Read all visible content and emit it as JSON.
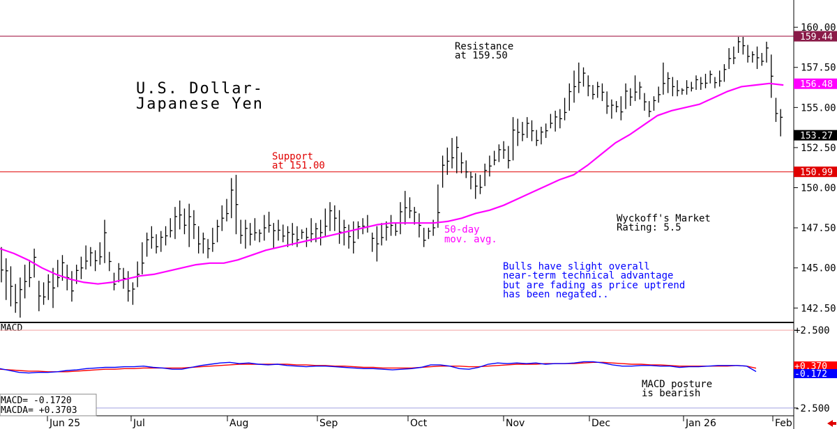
{
  "chart_data": [
    {
      "type": "ohlc",
      "title_line1": "U.S. Dollar-",
      "title_line2": "Japanese Yen",
      "y_ticks": [
        "160.00",
        "157.50",
        "155.00",
        "152.50",
        "150.00",
        "147.50",
        "145.00",
        "142.50"
      ],
      "ylim": [
        141.6,
        161.7
      ],
      "x_labels": [
        "Jun 25",
        "Jul",
        "Aug",
        "Sep",
        "Oct",
        "Nov",
        "Dec",
        "Jan 26",
        "Feb"
      ],
      "resistance": {
        "value": 159.44,
        "tag": "159.44",
        "line1": "Resistance",
        "line2": "at 159.50"
      },
      "support": {
        "value": 150.99,
        "tag": "150.99",
        "line1": "Support",
        "line2": "at 151.00"
      },
      "ma": {
        "label_line1": "50-day",
        "label_line2": "mov. avg.",
        "tag": "156.48",
        "color": "#ff00ff",
        "values": [
          146.2,
          145.9,
          145.5,
          145.0,
          144.6,
          144.3,
          144.1,
          144.0,
          144.1,
          144.3,
          144.5,
          144.6,
          144.8,
          145.0,
          145.2,
          145.3,
          145.3,
          145.5,
          145.8,
          146.1,
          146.3,
          146.5,
          146.7,
          146.9,
          147.1,
          147.3,
          147.5,
          147.7,
          147.8,
          147.8,
          147.8,
          147.8,
          147.9,
          148.1,
          148.4,
          148.6,
          148.9,
          149.3,
          149.7,
          150.1,
          150.5,
          150.8,
          151.4,
          152.1,
          152.8,
          153.3,
          153.9,
          154.5,
          154.8,
          155.0,
          155.2,
          155.6,
          156.0,
          156.3,
          156.4,
          156.5,
          156.4
        ]
      },
      "price_tag": "153.27",
      "rating_line1": "Wyckoff's Market",
      "rating_line2": "Rating: 5.5",
      "comment_lines": [
        "Bulls have slight overall",
        "near-term technical advantage",
        "but are fading as price uptrend",
        "has been negated.."
      ],
      "bars": [
        [
          146.3,
          144.1
        ],
        [
          145.6,
          143.0
        ],
        [
          145.1,
          142.6
        ],
        [
          144.0,
          142.2
        ],
        [
          144.4,
          141.9
        ],
        [
          145.2,
          143.1
        ],
        [
          145.5,
          143.8
        ],
        [
          146.2,
          144.4
        ],
        [
          144.2,
          142.3
        ],
        [
          144.1,
          142.7
        ],
        [
          144.6,
          143.0
        ],
        [
          145.0,
          142.5
        ],
        [
          145.5,
          143.8
        ],
        [
          145.8,
          144.2
        ],
        [
          145.2,
          143.6
        ],
        [
          144.8,
          142.9
        ],
        [
          145.2,
          144.0
        ],
        [
          145.7,
          144.3
        ],
        [
          146.4,
          144.9
        ],
        [
          146.3,
          145.1
        ],
        [
          146.1,
          144.8
        ],
        [
          146.6,
          145.2
        ],
        [
          148.0,
          145.3
        ],
        [
          146.0,
          144.8
        ],
        [
          144.7,
          143.6
        ],
        [
          145.3,
          144.1
        ],
        [
          145.0,
          143.7
        ],
        [
          144.8,
          142.9
        ],
        [
          144.1,
          142.7
        ],
        [
          145.4,
          143.8
        ],
        [
          146.6,
          144.6
        ],
        [
          147.2,
          145.7
        ],
        [
          147.6,
          146.2
        ],
        [
          147.1,
          145.9
        ],
        [
          147.3,
          146.0
        ],
        [
          147.6,
          146.4
        ],
        [
          148.1,
          146.9
        ],
        [
          148.8,
          146.8
        ],
        [
          149.2,
          147.4
        ],
        [
          148.7,
          147.1
        ],
        [
          149.0,
          146.3
        ],
        [
          148.6,
          146.8
        ],
        [
          147.6,
          145.9
        ],
        [
          147.2,
          145.9
        ],
        [
          146.8,
          145.6
        ],
        [
          147.5,
          146.0
        ],
        [
          148.0,
          146.6
        ],
        [
          148.9,
          147.3
        ],
        [
          149.3,
          147.9
        ],
        [
          150.6,
          148.1
        ],
        [
          150.8,
          147.1
        ],
        [
          148.0,
          146.5
        ],
        [
          148.0,
          146.2
        ],
        [
          147.8,
          146.4
        ],
        [
          148.1,
          146.7
        ],
        [
          147.4,
          146.6
        ],
        [
          148.3,
          146.7
        ],
        [
          148.5,
          147.2
        ],
        [
          147.8,
          146.2
        ],
        [
          148.0,
          146.7
        ],
        [
          147.7,
          146.6
        ],
        [
          147.6,
          146.3
        ],
        [
          147.8,
          146.4
        ],
        [
          147.6,
          146.3
        ],
        [
          147.4,
          146.8
        ],
        [
          147.5,
          146.3
        ],
        [
          148.1,
          146.6
        ],
        [
          147.8,
          146.6
        ],
        [
          148.0,
          146.4
        ],
        [
          148.7,
          147.0
        ],
        [
          149.1,
          147.3
        ],
        [
          148.9,
          147.3
        ],
        [
          148.6,
          146.5
        ],
        [
          148.0,
          146.4
        ],
        [
          147.7,
          146.2
        ],
        [
          147.9,
          145.9
        ],
        [
          147.9,
          146.8
        ],
        [
          148.1,
          147.1
        ],
        [
          148.3,
          147.2
        ],
        [
          147.2,
          146.0
        ],
        [
          147.6,
          145.4
        ],
        [
          147.8,
          146.4
        ],
        [
          147.9,
          146.7
        ],
        [
          148.3,
          147.0
        ],
        [
          147.8,
          147.0
        ],
        [
          149.1,
          147.1
        ],
        [
          149.8,
          147.7
        ],
        [
          149.4,
          148.1
        ],
        [
          148.8,
          147.7
        ],
        [
          148.4,
          146.9
        ],
        [
          147.5,
          146.3
        ],
        [
          147.5,
          146.8
        ],
        [
          148.0,
          147.0
        ],
        [
          150.2,
          147.5
        ],
        [
          152.0,
          150.0
        ],
        [
          152.5,
          150.8
        ],
        [
          153.1,
          151.2
        ],
        [
          153.2,
          150.9
        ],
        [
          152.2,
          150.9
        ],
        [
          151.7,
          150.6
        ],
        [
          151.0,
          149.9
        ],
        [
          150.9,
          149.3
        ],
        [
          150.8,
          149.6
        ],
        [
          151.5,
          150.1
        ],
        [
          152.0,
          150.7
        ],
        [
          152.3,
          151.4
        ],
        [
          152.7,
          151.6
        ],
        [
          152.9,
          151.8
        ],
        [
          152.6,
          151.2
        ],
        [
          154.4,
          151.7
        ],
        [
          154.3,
          152.6
        ],
        [
          154.1,
          152.9
        ],
        [
          154.4,
          153.1
        ],
        [
          154.2,
          152.9
        ],
        [
          153.6,
          152.6
        ],
        [
          153.8,
          152.7
        ],
        [
          154.0,
          153.1
        ],
        [
          154.6,
          153.7
        ],
        [
          154.8,
          153.5
        ],
        [
          154.9,
          153.7
        ],
        [
          155.6,
          154.2
        ],
        [
          156.5,
          154.8
        ],
        [
          157.3,
          155.3
        ],
        [
          157.8,
          155.9
        ],
        [
          157.5,
          156.3
        ],
        [
          157.0,
          155.7
        ],
        [
          156.4,
          155.5
        ],
        [
          156.6,
          155.6
        ],
        [
          156.5,
          155.4
        ],
        [
          156.0,
          154.6
        ],
        [
          155.5,
          154.3
        ],
        [
          155.4,
          154.7
        ],
        [
          155.7,
          154.2
        ],
        [
          156.5,
          154.9
        ],
        [
          156.2,
          155.1
        ],
        [
          157.0,
          155.4
        ],
        [
          156.6,
          155.5
        ],
        [
          155.9,
          154.8
        ],
        [
          155.4,
          154.4
        ],
        [
          155.7,
          154.8
        ],
        [
          156.3,
          155.3
        ],
        [
          157.8,
          155.8
        ],
        [
          157.2,
          155.9
        ],
        [
          156.9,
          155.7
        ],
        [
          156.7,
          155.7
        ],
        [
          156.2,
          155.8
        ],
        [
          156.7,
          155.8
        ],
        [
          156.6,
          156.0
        ],
        [
          157.0,
          156.1
        ],
        [
          156.9,
          156.1
        ],
        [
          157.1,
          156.2
        ],
        [
          157.3,
          156.5
        ],
        [
          156.9,
          156.2
        ],
        [
          157.3,
          156.3
        ],
        [
          157.7,
          156.6
        ],
        [
          158.7,
          157.4
        ],
        [
          158.8,
          157.7
        ],
        [
          159.4,
          158.4
        ],
        [
          159.4,
          158.3
        ],
        [
          158.9,
          157.8
        ],
        [
          158.5,
          157.8
        ],
        [
          158.8,
          157.4
        ],
        [
          158.4,
          157.6
        ],
        [
          159.1,
          157.8
        ],
        [
          158.3,
          155.6
        ],
        [
          155.6,
          154.1
        ],
        [
          154.9,
          153.2
        ]
      ]
    },
    {
      "type": "line",
      "title": "MACD",
      "y_ticks": [
        "+2.500",
        "-2.500"
      ],
      "ylim": [
        -3.0,
        3.0
      ],
      "macd_readout": "MACD=   -0.1720",
      "macda_readout": "MACDA= +0.3703",
      "macd_tag": "-0.172",
      "macda_tag": "+0.370",
      "posture_line1": "MACD posture",
      "posture_line2": "is bearish",
      "series": [
        {
          "color": "#0000ff",
          "values": [
            0.3,
            0.0,
            -0.3,
            -0.4,
            -0.3,
            -0.3,
            -0.2,
            0.0,
            0.1,
            0.3,
            0.4,
            0.5,
            0.5,
            0.6,
            0.6,
            0.7,
            0.5,
            0.4,
            0.2,
            0.2,
            0.5,
            0.8,
            1.0,
            1.2,
            1.3,
            1.1,
            1.2,
            1.0,
            0.9,
            1.0,
            0.8,
            0.7,
            0.6,
            0.7,
            0.7,
            0.6,
            0.5,
            0.4,
            0.3,
            0.3,
            0.2,
            0.1,
            0.2,
            0.3,
            0.5,
            0.9,
            0.9,
            0.7,
            0.3,
            0.2,
            0.5,
            1.0,
            1.2,
            1.1,
            1.2,
            1.1,
            1.2,
            1.0,
            1.1,
            1.1,
            1.2,
            1.4,
            1.4,
            1.2,
            0.9,
            0.7,
            0.7,
            0.8,
            0.8,
            0.7,
            0.7,
            0.5,
            0.6,
            0.6,
            0.7,
            0.8,
            0.8,
            0.8,
            0.7,
            -0.17
          ]
        },
        {
          "color": "#ff0000",
          "values": [
            0.2,
            0.1,
            0.0,
            -0.1,
            -0.1,
            -0.2,
            -0.2,
            -0.2,
            -0.1,
            0.0,
            0.1,
            0.2,
            0.2,
            0.3,
            0.3,
            0.4,
            0.4,
            0.4,
            0.4,
            0.4,
            0.5,
            0.6,
            0.7,
            0.8,
            0.9,
            1.0,
            1.0,
            1.0,
            1.0,
            1.0,
            1.0,
            0.9,
            0.9,
            0.8,
            0.8,
            0.7,
            0.7,
            0.6,
            0.5,
            0.5,
            0.4,
            0.4,
            0.4,
            0.4,
            0.5,
            0.6,
            0.7,
            0.7,
            0.7,
            0.6,
            0.6,
            0.7,
            0.8,
            0.9,
            1.0,
            1.0,
            1.0,
            1.1,
            1.1,
            1.1,
            1.1,
            1.2,
            1.3,
            1.3,
            1.2,
            1.1,
            1.0,
            1.0,
            0.9,
            0.9,
            0.8,
            0.7,
            0.7,
            0.7,
            0.7,
            0.7,
            0.7,
            0.8,
            0.7,
            0.37
          ]
        }
      ]
    }
  ]
}
